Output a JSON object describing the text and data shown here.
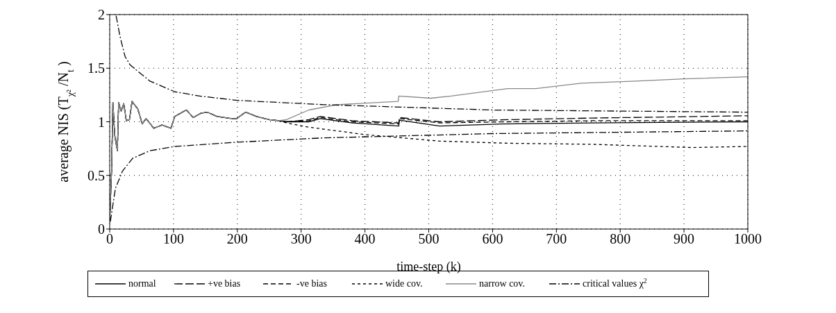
{
  "chart_data": {
    "type": "line",
    "xlabel": "time-step (k)",
    "ylabel": "average NIS (T$_{χ²}$/N$_{t}$)",
    "xlim": [
      0,
      1000
    ],
    "ylim": [
      0,
      2
    ],
    "xticks": [
      0,
      100,
      200,
      300,
      400,
      500,
      600,
      700,
      800,
      900,
      1000
    ],
    "yticks": [
      0,
      0.5,
      1,
      1.5,
      2
    ],
    "grid": true,
    "legend": "bottom",
    "marker": "none",
    "series": [
      {
        "name": "normal",
        "color": "#000000",
        "line_style": "solid",
        "x": [
          0,
          3,
          5,
          8,
          12,
          14,
          18,
          22,
          26,
          31,
          35,
          44,
          51,
          57,
          69,
          82,
          96,
          102,
          120,
          131,
          143,
          153,
          168,
          180,
          191,
          199,
          213,
          230,
          250,
          265,
          277,
          312,
          330,
          380,
          453,
          454,
          517,
          615,
          757,
          1000
        ],
        "values": [
          0.07,
          0.56,
          1.18,
          0.87,
          0.73,
          1.18,
          1.1,
          1.17,
          1.01,
          1.02,
          1.19,
          1.12,
          0.98,
          1.03,
          0.94,
          0.97,
          0.94,
          1.05,
          1.11,
          1.04,
          1.08,
          1.09,
          1.05,
          1.04,
          1.03,
          1.03,
          1.09,
          1.05,
          1.02,
          1.01,
          1.0,
          1.0,
          1.03,
          0.99,
          0.96,
          1.016,
          0.96,
          0.98,
          0.99,
          1.0
        ]
      },
      {
        "name": "+ve bias",
        "color": "#000000",
        "line_style": "longdash",
        "x": [
          0,
          3,
          5,
          8,
          12,
          14,
          18,
          22,
          26,
          31,
          35,
          44,
          51,
          57,
          69,
          82,
          96,
          102,
          120,
          131,
          143,
          153,
          168,
          180,
          191,
          199,
          213,
          230,
          250,
          265,
          277,
          312,
          330,
          380,
          453,
          454,
          517,
          624,
          757,
          1000
        ],
        "values": [
          0.07,
          0.56,
          1.18,
          0.87,
          0.73,
          1.18,
          1.1,
          1.17,
          1.01,
          1.02,
          1.19,
          1.12,
          0.98,
          1.03,
          0.94,
          0.97,
          0.94,
          1.05,
          1.11,
          1.04,
          1.08,
          1.09,
          1.05,
          1.04,
          1.03,
          1.03,
          1.09,
          1.05,
          1.02,
          1.01,
          1.0,
          1.02,
          1.05,
          1.01,
          0.99,
          1.04,
          1.0,
          1.02,
          1.035,
          1.056
        ]
      },
      {
        "name": "-ve bias",
        "color": "#000000",
        "line_style": "dashed",
        "x": [
          0,
          3,
          5,
          8,
          12,
          14,
          18,
          22,
          26,
          31,
          35,
          44,
          51,
          57,
          69,
          82,
          96,
          102,
          120,
          131,
          143,
          153,
          168,
          180,
          191,
          199,
          213,
          230,
          250,
          265,
          277,
          312,
          330,
          380,
          453,
          454,
          517,
          624,
          757,
          1000
        ],
        "values": [
          0.07,
          0.56,
          1.18,
          0.87,
          0.73,
          1.18,
          1.1,
          1.17,
          1.01,
          1.02,
          1.19,
          1.12,
          0.98,
          1.03,
          0.94,
          0.97,
          0.94,
          1.05,
          1.11,
          1.04,
          1.08,
          1.09,
          1.05,
          1.04,
          1.03,
          1.03,
          1.09,
          1.05,
          1.02,
          1.01,
          1.0,
          1.01,
          1.04,
          1.0,
          0.98,
          1.03,
          0.99,
          1.0,
          1.01,
          1.01
        ]
      },
      {
        "name": "wide cov.",
        "color": "#000000",
        "line_style": "shortdash",
        "x": [
          0,
          3,
          5,
          8,
          12,
          14,
          18,
          22,
          26,
          31,
          35,
          44,
          51,
          57,
          69,
          82,
          96,
          102,
          120,
          131,
          143,
          153,
          168,
          180,
          191,
          199,
          213,
          230,
          250,
          265,
          277,
          312,
          401,
          517,
          624,
          757,
          913,
          1000
        ],
        "values": [
          0.07,
          0.56,
          1.18,
          0.87,
          0.73,
          1.18,
          1.1,
          1.17,
          1.01,
          1.02,
          1.19,
          1.12,
          0.98,
          1.03,
          0.94,
          0.97,
          0.94,
          1.05,
          1.11,
          1.04,
          1.08,
          1.09,
          1.05,
          1.04,
          1.03,
          1.03,
          1.09,
          1.05,
          1.02,
          1.01,
          0.99,
          0.95,
          0.88,
          0.82,
          0.8,
          0.79,
          0.76,
          0.77
        ]
      },
      {
        "name": "narrow cov.",
        "color": "#888888",
        "line_style": "solid",
        "x": [
          0,
          3,
          5,
          8,
          12,
          14,
          18,
          22,
          26,
          31,
          35,
          44,
          51,
          57,
          69,
          82,
          96,
          102,
          120,
          131,
          143,
          153,
          168,
          180,
          191,
          199,
          213,
          230,
          250,
          265,
          277,
          312,
          356,
          452,
          453,
          503,
          535,
          624,
          668,
          739,
          824,
          900,
          1000
        ],
        "values": [
          0.07,
          0.56,
          1.18,
          0.87,
          0.73,
          1.18,
          1.1,
          1.17,
          1.01,
          1.02,
          1.19,
          1.12,
          0.98,
          1.03,
          0.94,
          0.97,
          0.94,
          1.05,
          1.11,
          1.04,
          1.08,
          1.09,
          1.05,
          1.04,
          1.03,
          1.03,
          1.09,
          1.05,
          1.02,
          1.01,
          1.02,
          1.11,
          1.16,
          1.19,
          1.24,
          1.22,
          1.24,
          1.31,
          1.31,
          1.36,
          1.38,
          1.4,
          1.42
        ]
      },
      {
        "name": "critical values χ$^{2}$",
        "color": "#000000",
        "line_style": "dashdot",
        "x": [
          10,
          16,
          24,
          32,
          63,
          102,
          141,
          200,
          335,
          600,
          1000
        ],
        "values": [
          1.99,
          1.8,
          1.61,
          1.53,
          1.38,
          1.28,
          1.24,
          1.2,
          1.16,
          1.11,
          1.09
        ]
      },
      {
        "color": "#000000",
        "line_style": "dashdot",
        "x": [
          1,
          9,
          20,
          36,
          63,
          102,
          200,
          335,
          600,
          1000
        ],
        "values": [
          0.07,
          0.38,
          0.54,
          0.66,
          0.73,
          0.77,
          0.81,
          0.85,
          0.89,
          0.915
        ]
      }
    ]
  }
}
